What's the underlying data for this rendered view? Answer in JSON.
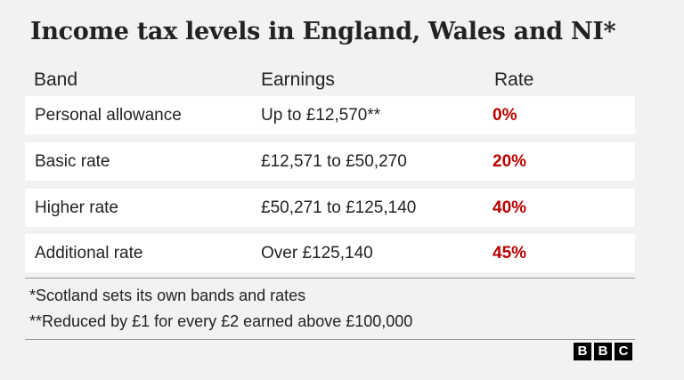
{
  "header": {
    "title": "Income tax levels in England, Wales and NI*"
  },
  "table": {
    "columns": [
      "Band",
      "Earnings",
      "Rate"
    ],
    "rows": [
      [
        "Personal allowance",
        "Up to £12,570**",
        "0%"
      ],
      [
        "Basic rate",
        "£12,571 to £50,270",
        "20%"
      ],
      [
        "Higher rate",
        "£50,271 to £125,140",
        "40%"
      ],
      [
        "Additional rate",
        "Over £125,140",
        "45%"
      ]
    ]
  },
  "footnotes": [
    "*Scotland sets its own bands and rates",
    "**Reduced by £1 for every £2 earned above £100,000"
  ],
  "logo": [
    "B",
    "B",
    "C"
  ]
}
